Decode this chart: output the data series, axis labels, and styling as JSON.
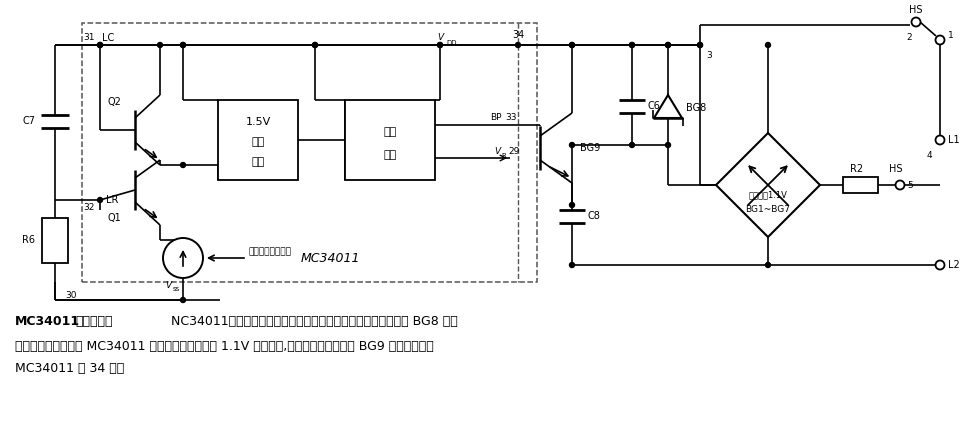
{
  "bg_color": "#ffffff",
  "circuit_color": "#000000",
  "figsize": [
    9.8,
    4.46
  ],
  "dpi": 100,
  "caption_line1_bold": "MC34011的稳压电路",
  "caption_line1_normal": "    NC34011的稳压电路由该芯片的一部分和外接的整流桥、稳压管 BG8 等电",
  "caption_line2": "路构成。其功能是为 MC34011 在工作时提供稳定的 1.1V 直流电压,该稳定的直流电压由 BG9 的发射极送至",
  "caption_line3": "MC34011 第 34 脚。"
}
